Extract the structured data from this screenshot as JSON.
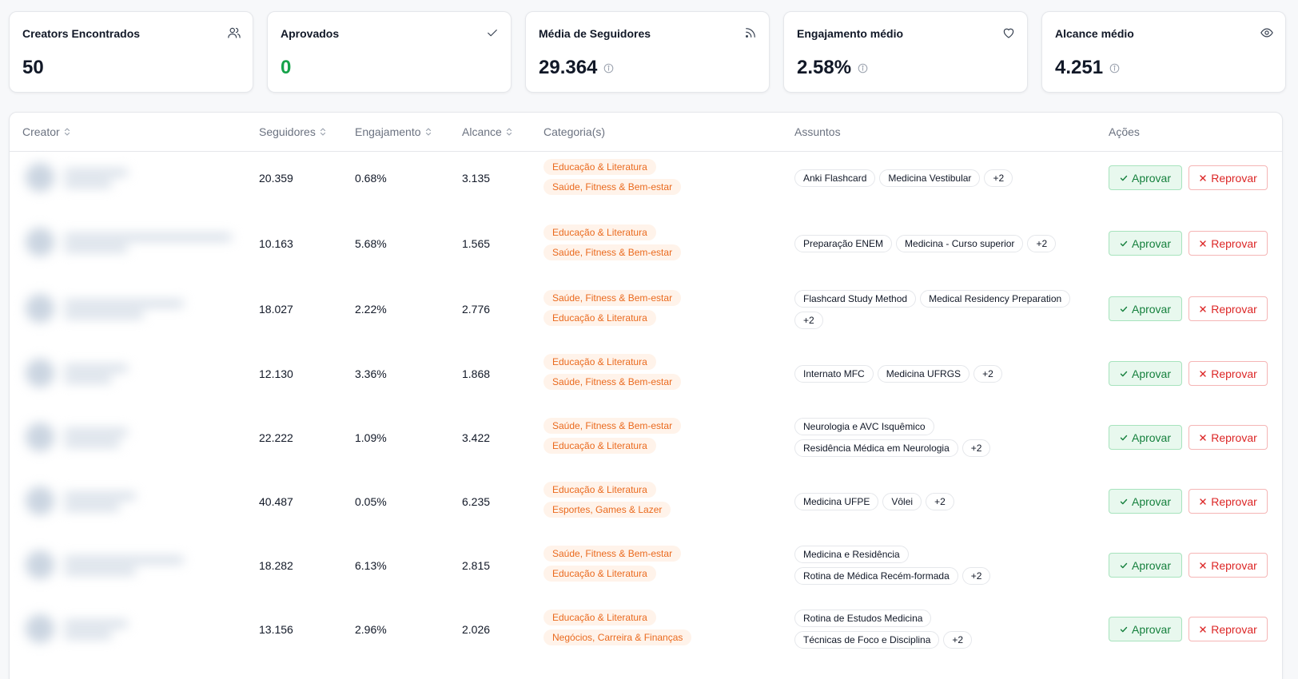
{
  "stats": [
    {
      "label": "Creators Encontrados",
      "value": "50",
      "icon": "users-icon"
    },
    {
      "label": "Aprovados",
      "value": "0",
      "icon": "check-icon",
      "value_color": "#16a34a"
    },
    {
      "label": "Média de Seguidores",
      "value": "29.364",
      "icon": "rss-icon",
      "info": true
    },
    {
      "label": "Engajamento médio",
      "value": "2.58%",
      "icon": "heart-icon",
      "info": true
    },
    {
      "label": "Alcance médio",
      "value": "4.251",
      "icon": "eye-icon",
      "info": true
    }
  ],
  "table": {
    "headers": {
      "creator": "Creator",
      "seguidores": "Seguidores",
      "engajamento": "Engajamento",
      "alcance": "Alcance",
      "categorias": "Categoria(s)",
      "assuntos": "Assuntos",
      "acoes": "Ações"
    },
    "approve_label": "Aprovar",
    "reject_label": "Reprovar",
    "rows": [
      {
        "seguidores": "20.359",
        "engajamento": "0.68%",
        "alcance": "3.135",
        "categorias": [
          "Educação & Literatura",
          "Saúde, Fitness & Bem-estar"
        ],
        "assuntos": [
          "Anki Flashcard",
          "Medicina Vestibular",
          "+2"
        ]
      },
      {
        "seguidores": "10.163",
        "engajamento": "5.68%",
        "alcance": "1.565",
        "categorias": [
          "Educação & Literatura",
          "Saúde, Fitness & Bem-estar"
        ],
        "assuntos": [
          "Preparação ENEM",
          "Medicina - Curso superior",
          "+2"
        ]
      },
      {
        "seguidores": "18.027",
        "engajamento": "2.22%",
        "alcance": "2.776",
        "categorias": [
          "Saúde, Fitness & Bem-estar",
          "Educação & Literatura"
        ],
        "assuntos": [
          "Flashcard Study Method",
          "Medical Residency Preparation",
          "+2"
        ]
      },
      {
        "seguidores": "12.130",
        "engajamento": "3.36%",
        "alcance": "1.868",
        "categorias": [
          "Educação & Literatura",
          "Saúde, Fitness & Bem-estar"
        ],
        "assuntos": [
          "Internato MFC",
          "Medicina UFRGS",
          "+2"
        ]
      },
      {
        "seguidores": "22.222",
        "engajamento": "1.09%",
        "alcance": "3.422",
        "categorias": [
          "Saúde, Fitness & Bem-estar",
          "Educação & Literatura"
        ],
        "assuntos": [
          "Neurologia e AVC Isquêmico",
          "Residência Médica em Neurologia",
          "+2"
        ]
      },
      {
        "seguidores": "40.487",
        "engajamento": "0.05%",
        "alcance": "6.235",
        "categorias": [
          "Educação & Literatura",
          "Esportes, Games & Lazer"
        ],
        "assuntos": [
          "Medicina UFPE",
          "Vôlei",
          "+2"
        ]
      },
      {
        "seguidores": "18.282",
        "engajamento": "6.13%",
        "alcance": "2.815",
        "categorias": [
          "Saúde, Fitness & Bem-estar",
          "Educação & Literatura"
        ],
        "assuntos": [
          "Medicina e Residência",
          "Rotina de Médica Recém-formada",
          "+2"
        ]
      },
      {
        "seguidores": "13.156",
        "engajamento": "2.96%",
        "alcance": "2.026",
        "categorias": [
          "Educação & Literatura",
          "Negócios, Carreira & Finanças"
        ],
        "assuntos": [
          "Rotina de Estudos Medicina",
          "Técnicas de Foco e Disciplina",
          "+2"
        ]
      }
    ]
  }
}
